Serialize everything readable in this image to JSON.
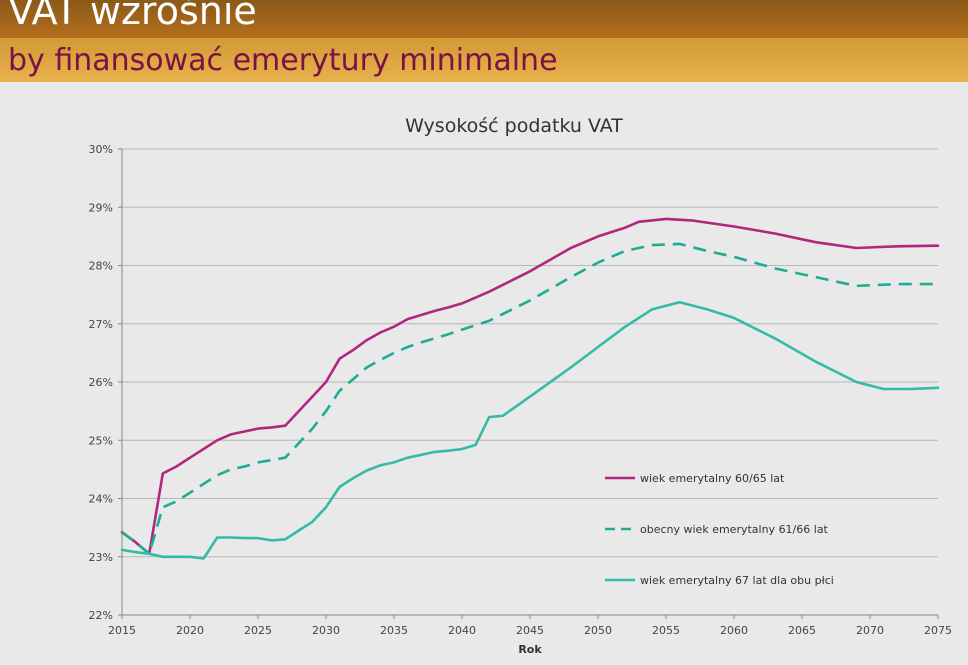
{
  "slide": {
    "title": "VAT wzrośnie",
    "subtitle": "by finansować emerytury minimalne"
  },
  "colors": {
    "header_dark": "#9a6418",
    "header_light": "#e3ab47",
    "subtitle_text": "#7a1246",
    "series_magenta": "#b2277e",
    "series_teal_dashed": "#1fab94",
    "series_teal": "#35bba5"
  },
  "chart_data": {
    "type": "line",
    "title": "Wysokość podatku VAT",
    "xlabel": "Rok",
    "ylabel": "",
    "xlim": [
      2015,
      2075
    ],
    "ylim": [
      22,
      30
    ],
    "x_ticks": [
      "2015",
      "2020",
      "2025",
      "2030",
      "2035",
      "2040",
      "2045",
      "2050",
      "2055",
      "2060",
      "2065",
      "2070",
      "2075"
    ],
    "y_ticks": [
      "22%",
      "23%",
      "24%",
      "25%",
      "26%",
      "27%",
      "28%",
      "29%",
      "30%"
    ],
    "grid": true,
    "legend_position": "inside-lower-right",
    "series": [
      {
        "name": "wiek emerytalny 60/65 lat",
        "color": "#b2277e",
        "style": "solid",
        "points": [
          [
            2015,
            23.42
          ],
          [
            2016,
            23.25
          ],
          [
            2017,
            23.05
          ],
          [
            2018,
            24.43
          ],
          [
            2019,
            24.55
          ],
          [
            2020,
            24.7
          ],
          [
            2021,
            24.85
          ],
          [
            2022,
            25.0
          ],
          [
            2023,
            25.1
          ],
          [
            2024,
            25.15
          ],
          [
            2025,
            25.2
          ],
          [
            2026,
            25.22
          ],
          [
            2027,
            25.25
          ],
          [
            2028,
            25.5
          ],
          [
            2029,
            25.75
          ],
          [
            2030,
            26.0
          ],
          [
            2031,
            26.4
          ],
          [
            2032,
            26.55
          ],
          [
            2033,
            26.72
          ],
          [
            2034,
            26.85
          ],
          [
            2035,
            26.95
          ],
          [
            2036,
            27.08
          ],
          [
            2037,
            27.15
          ],
          [
            2038,
            27.22
          ],
          [
            2039,
            27.28
          ],
          [
            2040,
            27.35
          ],
          [
            2042,
            27.55
          ],
          [
            2045,
            27.9
          ],
          [
            2048,
            28.3
          ],
          [
            2050,
            28.5
          ],
          [
            2052,
            28.65
          ],
          [
            2053,
            28.75
          ],
          [
            2055,
            28.8
          ],
          [
            2057,
            28.77
          ],
          [
            2060,
            28.67
          ],
          [
            2063,
            28.55
          ],
          [
            2066,
            28.4
          ],
          [
            2069,
            28.3
          ],
          [
            2072,
            28.33
          ],
          [
            2075,
            28.34
          ]
        ]
      },
      {
        "name": "obecny wiek emerytalny 61/66 lat",
        "color": "#1fab94",
        "style": "dashed",
        "points": [
          [
            2015,
            23.42
          ],
          [
            2016,
            23.25
          ],
          [
            2017,
            23.05
          ],
          [
            2018,
            23.85
          ],
          [
            2019,
            23.95
          ],
          [
            2020,
            24.1
          ],
          [
            2021,
            24.25
          ],
          [
            2022,
            24.4
          ],
          [
            2023,
            24.5
          ],
          [
            2024,
            24.55
          ],
          [
            2025,
            24.62
          ],
          [
            2026,
            24.66
          ],
          [
            2027,
            24.7
          ],
          [
            2028,
            24.95
          ],
          [
            2029,
            25.2
          ],
          [
            2030,
            25.5
          ],
          [
            2031,
            25.85
          ],
          [
            2032,
            26.05
          ],
          [
            2033,
            26.25
          ],
          [
            2034,
            26.38
          ],
          [
            2035,
            26.5
          ],
          [
            2036,
            26.6
          ],
          [
            2037,
            26.68
          ],
          [
            2038,
            26.75
          ],
          [
            2039,
            26.82
          ],
          [
            2040,
            26.9
          ],
          [
            2042,
            27.05
          ],
          [
            2045,
            27.4
          ],
          [
            2048,
            27.8
          ],
          [
            2050,
            28.05
          ],
          [
            2052,
            28.25
          ],
          [
            2054,
            28.35
          ],
          [
            2056,
            28.37
          ],
          [
            2058,
            28.25
          ],
          [
            2060,
            28.15
          ],
          [
            2063,
            27.95
          ],
          [
            2066,
            27.8
          ],
          [
            2069,
            27.65
          ],
          [
            2072,
            27.68
          ],
          [
            2075,
            27.68
          ]
        ]
      },
      {
        "name": "wiek emerytalny 67 lat dla obu płci",
        "color": "#35bba5",
        "style": "solid",
        "points": [
          [
            2015,
            23.12
          ],
          [
            2016,
            23.08
          ],
          [
            2017,
            23.05
          ],
          [
            2018,
            23.0
          ],
          [
            2019,
            23.0
          ],
          [
            2020,
            23.0
          ],
          [
            2021,
            22.97
          ],
          [
            2022,
            23.33
          ],
          [
            2023,
            23.33
          ],
          [
            2024,
            23.32
          ],
          [
            2025,
            23.32
          ],
          [
            2026,
            23.28
          ],
          [
            2027,
            23.3
          ],
          [
            2028,
            23.45
          ],
          [
            2029,
            23.6
          ],
          [
            2030,
            23.85
          ],
          [
            2031,
            24.2
          ],
          [
            2032,
            24.35
          ],
          [
            2033,
            24.48
          ],
          [
            2034,
            24.57
          ],
          [
            2035,
            24.62
          ],
          [
            2036,
            24.7
          ],
          [
            2037,
            24.75
          ],
          [
            2038,
            24.8
          ],
          [
            2039,
            24.82
          ],
          [
            2040,
            24.85
          ],
          [
            2041,
            24.92
          ],
          [
            2042,
            25.4
          ],
          [
            2043,
            25.42
          ],
          [
            2045,
            25.75
          ],
          [
            2048,
            26.25
          ],
          [
            2050,
            26.6
          ],
          [
            2052,
            26.95
          ],
          [
            2054,
            27.25
          ],
          [
            2056,
            27.37
          ],
          [
            2058,
            27.25
          ],
          [
            2060,
            27.1
          ],
          [
            2063,
            26.75
          ],
          [
            2066,
            26.35
          ],
          [
            2069,
            26.0
          ],
          [
            2071,
            25.88
          ],
          [
            2073,
            25.88
          ],
          [
            2075,
            25.9
          ]
        ]
      }
    ]
  }
}
